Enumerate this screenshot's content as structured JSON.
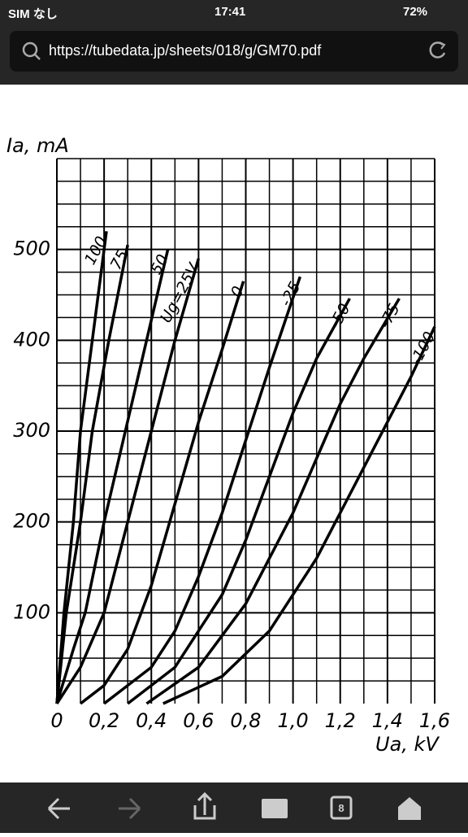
{
  "status_bar": {
    "carrier": "SIM なし",
    "time": "17:41",
    "battery": "72%"
  },
  "address_bar": {
    "url": "https://tubedata.jp/sheets/018/g/GM70.pdf"
  },
  "toolbar": {
    "tab_count": "8"
  },
  "chart_data": {
    "type": "line",
    "y_label": "Ia, mA",
    "x_label": "Ua, kV",
    "xlim": [
      0,
      1.6
    ],
    "ylim": [
      0,
      600
    ],
    "xticks": [
      0,
      {
        "value": 0.2,
        "label": "0,2"
      },
      {
        "value": 0.4,
        "label": "0,4"
      },
      {
        "value": 0.6,
        "label": "0,6"
      },
      {
        "value": 0.8,
        "label": "0,8"
      },
      {
        "value": 1.0,
        "label": "1,0"
      },
      {
        "value": 1.2,
        "label": "1,2"
      },
      {
        "value": 1.4,
        "label": "1,4"
      },
      {
        "value": 1.6,
        "label": "1,6"
      }
    ],
    "yticks": [
      100,
      200,
      300,
      400,
      500
    ],
    "minor_xticks": [
      0.1,
      0.3,
      0.5,
      0.7,
      0.9,
      1.1,
      1.3,
      1.5
    ],
    "minor_yticks": [
      25,
      50,
      75,
      125,
      150,
      175,
      225,
      250,
      275,
      325,
      350,
      375,
      425,
      450,
      475,
      525,
      550,
      575,
      600
    ],
    "grid": true,
    "series": [
      {
        "name": "100",
        "color": "#000000",
        "x": [
          0,
          0.03,
          0.07,
          0.1,
          0.15,
          0.21
        ],
        "values": [
          0,
          100,
          200,
          300,
          400,
          520
        ]
      },
      {
        "name": "75",
        "color": "#000000",
        "x": [
          0,
          0.04,
          0.1,
          0.15,
          0.22,
          0.3
        ],
        "values": [
          0,
          100,
          200,
          300,
          400,
          505
        ]
      },
      {
        "name": "50",
        "color": "#000000",
        "x": [
          0,
          0.07,
          0.12,
          0.2,
          0.29,
          0.38,
          0.47
        ],
        "values": [
          0,
          60,
          100,
          200,
          300,
          400,
          500
        ]
      },
      {
        "name": "Ug=25V",
        "color": "#000000",
        "x": [
          0,
          0.1,
          0.2,
          0.3,
          0.4,
          0.5,
          0.6
        ],
        "values": [
          0,
          40,
          100,
          200,
          300,
          400,
          490
        ]
      },
      {
        "name": "0",
        "color": "#000000",
        "x": [
          0.1,
          0.2,
          0.3,
          0.4,
          0.5,
          0.6,
          0.7,
          0.79
        ],
        "values": [
          0,
          20,
          60,
          130,
          220,
          310,
          390,
          465
        ]
      },
      {
        "name": "-25",
        "color": "#000000",
        "x": [
          0.2,
          0.4,
          0.5,
          0.6,
          0.7,
          0.8,
          0.9,
          1.03
        ],
        "values": [
          0,
          40,
          80,
          140,
          210,
          290,
          370,
          470
        ]
      },
      {
        "name": "-50",
        "color": "#000000",
        "x": [
          0.3,
          0.5,
          0.7,
          0.8,
          0.9,
          1.0,
          1.1,
          1.24
        ],
        "values": [
          0,
          40,
          120,
          180,
          250,
          320,
          380,
          446
        ]
      },
      {
        "name": "-75",
        "color": "#000000",
        "x": [
          0.38,
          0.6,
          0.8,
          1.0,
          1.1,
          1.2,
          1.3,
          1.45
        ],
        "values": [
          0,
          40,
          110,
          210,
          270,
          330,
          380,
          446
        ]
      },
      {
        "name": "-100",
        "color": "#000000",
        "x": [
          0.45,
          0.7,
          0.9,
          1.1,
          1.2,
          1.3,
          1.4,
          1.5,
          1.6
        ],
        "values": [
          0,
          30,
          80,
          160,
          210,
          260,
          310,
          360,
          415
        ]
      }
    ]
  }
}
